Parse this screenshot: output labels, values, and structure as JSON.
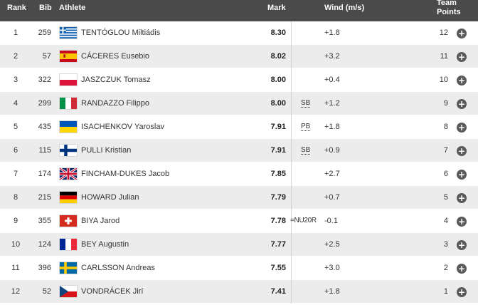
{
  "header": {
    "rank": "Rank",
    "bib": "Bib",
    "athlete": "Athlete",
    "mark": "Mark",
    "wind": "Wind (m/s)",
    "team_line1": "Team",
    "team_line2": "Points"
  },
  "rows": [
    {
      "rank": "1",
      "bib": "259",
      "name": "TENTÓGLOU Miltiádis",
      "flag": "greece-flag",
      "mark": "8.30",
      "note": "",
      "wind": "+1.8",
      "points": "12"
    },
    {
      "rank": "2",
      "bib": "57",
      "name": "CÁCERES Eusebio",
      "flag": "spain-flag",
      "mark": "8.02",
      "note": "",
      "wind": "+3.2",
      "points": "11"
    },
    {
      "rank": "3",
      "bib": "322",
      "name": "JASZCZUK Tomasz",
      "flag": "poland-flag",
      "mark": "8.00",
      "note": "",
      "wind": "+0.4",
      "points": "10"
    },
    {
      "rank": "4",
      "bib": "299",
      "name": "RANDAZZO Filippo",
      "flag": "italy-flag",
      "mark": "8.00",
      "note": "SB",
      "wind": "+1.2",
      "points": "9"
    },
    {
      "rank": "5",
      "bib": "435",
      "name": "ISACHENKOV Yaroslav",
      "flag": "ukraine-flag",
      "mark": "7.91",
      "note": "PB",
      "wind": "+1.8",
      "points": "8"
    },
    {
      "rank": "6",
      "bib": "115",
      "name": "PULLI Kristian",
      "flag": "finland-flag",
      "mark": "7.91",
      "note": "SB",
      "wind": "+0.9",
      "points": "7"
    },
    {
      "rank": "7",
      "bib": "174",
      "name": "FINCHAM-DUKES Jacob",
      "flag": "uk-flag",
      "mark": "7.85",
      "note": "",
      "wind": "+2.7",
      "points": "6"
    },
    {
      "rank": "8",
      "bib": "215",
      "name": "HOWARD Julian",
      "flag": "germany-flag",
      "mark": "7.79",
      "note": "",
      "wind": "+0.7",
      "points": "5"
    },
    {
      "rank": "9",
      "bib": "355",
      "name": "BIYA Jarod",
      "flag": "switzerland-flag",
      "mark": "7.78",
      "note": "=NU20R",
      "wind": "-0.1",
      "points": "4"
    },
    {
      "rank": "10",
      "bib": "124",
      "name": "BEY Augustin",
      "flag": "france-flag",
      "mark": "7.77",
      "note": "",
      "wind": "+2.5",
      "points": "3"
    },
    {
      "rank": "11",
      "bib": "396",
      "name": "CARLSSON Andreas",
      "flag": "sweden-flag",
      "mark": "7.55",
      "note": "",
      "wind": "+3.0",
      "points": "2"
    },
    {
      "rank": "12",
      "bib": "52",
      "name": "VONDRÁCEK Jirí",
      "flag": "czechia-flag",
      "mark": "7.41",
      "note": "",
      "wind": "+1.8",
      "points": "1"
    }
  ],
  "expand_symbol": "+",
  "colors": {
    "header_bg": "#4a4a4a",
    "row_alt_bg": "#ececec",
    "expand_button_bg": "#5a5a5a"
  }
}
